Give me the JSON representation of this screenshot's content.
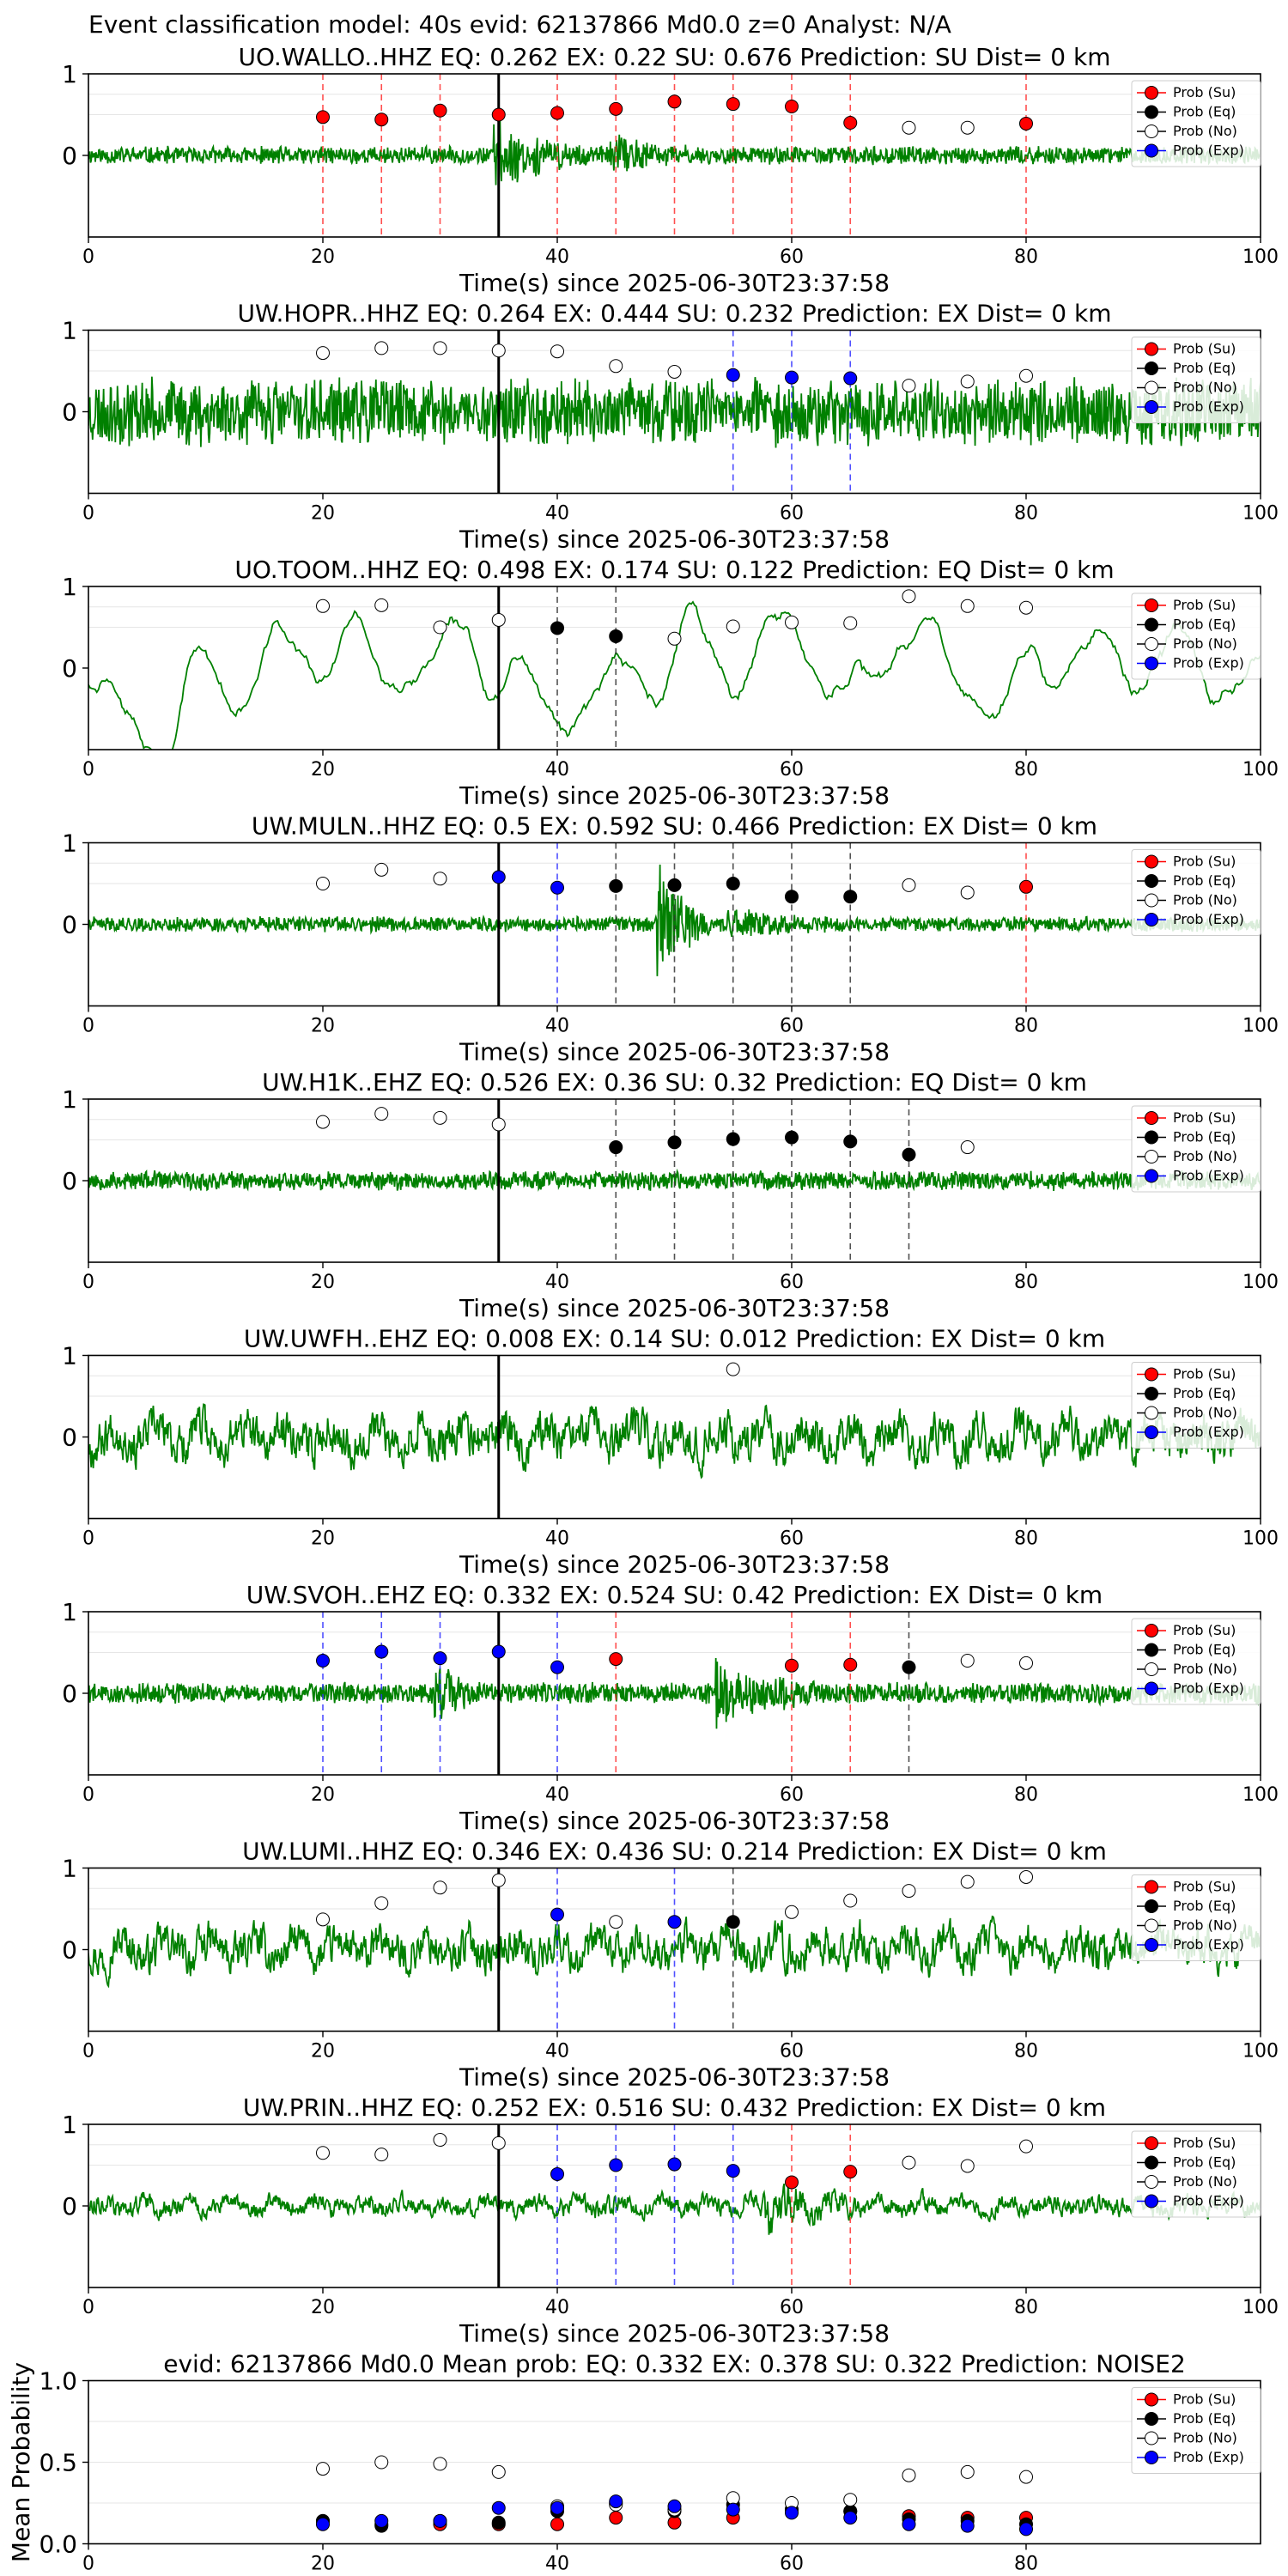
{
  "figure_title": "Event classification model: 40s evid: 62137866 Md0.0 z=0 Analyst: N/A",
  "xlabel": "Time(s) since 2025-06-30T23:37:58",
  "colors": {
    "waveform": "#008000",
    "su": "#ff0000",
    "eq": "#000000",
    "no": "#ffffff",
    "exp": "#0000ff",
    "pick_line": "#000000"
  },
  "legend_labels": [
    "Prob (Su)",
    "Prob (Eq)",
    "Prob (No)",
    "Prob (Exp)"
  ],
  "chart_data": [
    {
      "type": "line",
      "title": "UO.WALLO..HHZ   EQ: 0.262  EX: 0.22  SU: 0.676   Prediction: SU    Dist= 0 km",
      "xlim": [
        0,
        100
      ],
      "ylim": [
        -1,
        1
      ],
      "xticks": [
        0,
        20,
        40,
        60,
        80,
        100
      ],
      "yticks": [
        0,
        1
      ],
      "pick_time": 35,
      "noise_amp": 0.12,
      "seed": 11,
      "style": "noisy",
      "bursts": [
        [
          35,
          8,
          0.35
        ],
        [
          45,
          6,
          0.2
        ]
      ],
      "vlines": [
        {
          "x": 20,
          "c": "su"
        },
        {
          "x": 25,
          "c": "su"
        },
        {
          "x": 30,
          "c": "su"
        },
        {
          "x": 40,
          "c": "su"
        },
        {
          "x": 45,
          "c": "su"
        },
        {
          "x": 50,
          "c": "su"
        },
        {
          "x": 55,
          "c": "su"
        },
        {
          "x": 60,
          "c": "su"
        },
        {
          "x": 65,
          "c": "su"
        },
        {
          "x": 80,
          "c": "su"
        }
      ],
      "points": [
        {
          "x": 20,
          "y": 0.47,
          "c": "su"
        },
        {
          "x": 25,
          "y": 0.44,
          "c": "su"
        },
        {
          "x": 30,
          "y": 0.55,
          "c": "su"
        },
        {
          "x": 35,
          "y": 0.5,
          "c": "su"
        },
        {
          "x": 40,
          "y": 0.52,
          "c": "su"
        },
        {
          "x": 45,
          "y": 0.57,
          "c": "su"
        },
        {
          "x": 50,
          "y": 0.66,
          "c": "su"
        },
        {
          "x": 55,
          "y": 0.63,
          "c": "su"
        },
        {
          "x": 60,
          "y": 0.6,
          "c": "su"
        },
        {
          "x": 65,
          "y": 0.4,
          "c": "su"
        },
        {
          "x": 70,
          "y": 0.34,
          "c": "no"
        },
        {
          "x": 75,
          "y": 0.34,
          "c": "no"
        },
        {
          "x": 80,
          "y": 0.39,
          "c": "su"
        }
      ]
    },
    {
      "type": "line",
      "title": "UW.HOPR..HHZ   EQ: 0.264  EX: 0.444  SU: 0.232   Prediction: EX    Dist= 0 km",
      "xlim": [
        0,
        100
      ],
      "ylim": [
        -1,
        1
      ],
      "xticks": [
        0,
        20,
        40,
        60,
        80,
        100
      ],
      "yticks": [
        0,
        1
      ],
      "pick_time": 35,
      "noise_amp": 0.45,
      "seed": 23,
      "style": "noisy",
      "bursts": [],
      "vlines": [
        {
          "x": 55,
          "c": "exp"
        },
        {
          "x": 60,
          "c": "exp"
        },
        {
          "x": 65,
          "c": "exp"
        }
      ],
      "points": [
        {
          "x": 20,
          "y": 0.72,
          "c": "no"
        },
        {
          "x": 25,
          "y": 0.78,
          "c": "no"
        },
        {
          "x": 30,
          "y": 0.78,
          "c": "no"
        },
        {
          "x": 35,
          "y": 0.75,
          "c": "no"
        },
        {
          "x": 40,
          "y": 0.74,
          "c": "no"
        },
        {
          "x": 45,
          "y": 0.56,
          "c": "no"
        },
        {
          "x": 50,
          "y": 0.49,
          "c": "no"
        },
        {
          "x": 55,
          "y": 0.45,
          "c": "exp"
        },
        {
          "x": 60,
          "y": 0.42,
          "c": "exp"
        },
        {
          "x": 65,
          "y": 0.41,
          "c": "exp"
        },
        {
          "x": 70,
          "y": 0.32,
          "c": "no"
        },
        {
          "x": 75,
          "y": 0.37,
          "c": "no"
        },
        {
          "x": 80,
          "y": 0.44,
          "c": "no"
        }
      ]
    },
    {
      "type": "line",
      "title": "UO.TOOM..HHZ   EQ: 0.498  EX: 0.174  SU: 0.122   Prediction: EQ    Dist= 0 km",
      "xlim": [
        0,
        100
      ],
      "ylim": [
        -1,
        1
      ],
      "xticks": [
        0,
        20,
        40,
        60,
        80,
        100
      ],
      "yticks": [
        0,
        1
      ],
      "pick_time": 35,
      "noise_amp": 0.55,
      "seed": 37,
      "style": "smooth",
      "bursts": [],
      "vlines": [
        {
          "x": 40,
          "c": "eq"
        },
        {
          "x": 45,
          "c": "eq"
        }
      ],
      "points": [
        {
          "x": 20,
          "y": 0.76,
          "c": "no"
        },
        {
          "x": 25,
          "y": 0.77,
          "c": "no"
        },
        {
          "x": 30,
          "y": 0.5,
          "c": "no"
        },
        {
          "x": 35,
          "y": 0.59,
          "c": "no"
        },
        {
          "x": 40,
          "y": 0.49,
          "c": "eq"
        },
        {
          "x": 45,
          "y": 0.39,
          "c": "eq"
        },
        {
          "x": 50,
          "y": 0.36,
          "c": "no"
        },
        {
          "x": 55,
          "y": 0.51,
          "c": "no"
        },
        {
          "x": 60,
          "y": 0.56,
          "c": "no"
        },
        {
          "x": 65,
          "y": 0.55,
          "c": "no"
        },
        {
          "x": 70,
          "y": 0.88,
          "c": "no"
        },
        {
          "x": 75,
          "y": 0.76,
          "c": "no"
        },
        {
          "x": 80,
          "y": 0.74,
          "c": "no"
        }
      ]
    },
    {
      "type": "line",
      "title": "UW.MULN..HHZ   EQ: 0.5  EX: 0.592  SU: 0.466   Prediction: EX    Dist= 0 km",
      "xlim": [
        0,
        100
      ],
      "ylim": [
        -1,
        1
      ],
      "xticks": [
        0,
        20,
        40,
        60,
        80,
        100
      ],
      "yticks": [
        0,
        1
      ],
      "pick_time": 35,
      "noise_amp": 0.1,
      "seed": 41,
      "style": "noisy",
      "bursts": [
        [
          49,
          4,
          0.75
        ],
        [
          55,
          8,
          0.15
        ]
      ],
      "vlines": [
        {
          "x": 40,
          "c": "exp"
        },
        {
          "x": 45,
          "c": "eq"
        },
        {
          "x": 50,
          "c": "eq"
        },
        {
          "x": 55,
          "c": "eq"
        },
        {
          "x": 60,
          "c": "eq"
        },
        {
          "x": 65,
          "c": "eq"
        },
        {
          "x": 80,
          "c": "su"
        }
      ],
      "points": [
        {
          "x": 20,
          "y": 0.5,
          "c": "no"
        },
        {
          "x": 25,
          "y": 0.67,
          "c": "no"
        },
        {
          "x": 30,
          "y": 0.56,
          "c": "no"
        },
        {
          "x": 35,
          "y": 0.58,
          "c": "exp"
        },
        {
          "x": 40,
          "y": 0.45,
          "c": "exp"
        },
        {
          "x": 45,
          "y": 0.47,
          "c": "eq"
        },
        {
          "x": 50,
          "y": 0.48,
          "c": "eq"
        },
        {
          "x": 55,
          "y": 0.5,
          "c": "eq"
        },
        {
          "x": 60,
          "y": 0.34,
          "c": "eq"
        },
        {
          "x": 65,
          "y": 0.34,
          "c": "eq"
        },
        {
          "x": 70,
          "y": 0.48,
          "c": "no"
        },
        {
          "x": 75,
          "y": 0.39,
          "c": "no"
        },
        {
          "x": 80,
          "y": 0.46,
          "c": "su"
        }
      ]
    },
    {
      "type": "line",
      "title": "UW.H1K..EHZ   EQ: 0.526  EX: 0.36  SU: 0.32   Prediction: EQ    Dist= 0 km",
      "xlim": [
        0,
        100
      ],
      "ylim": [
        -1,
        1
      ],
      "xticks": [
        0,
        20,
        40,
        60,
        80,
        100
      ],
      "yticks": [
        0,
        1
      ],
      "pick_time": 35,
      "noise_amp": 0.13,
      "seed": 53,
      "style": "noisy",
      "bursts": [],
      "vlines": [
        {
          "x": 45,
          "c": "eq"
        },
        {
          "x": 50,
          "c": "eq"
        },
        {
          "x": 55,
          "c": "eq"
        },
        {
          "x": 60,
          "c": "eq"
        },
        {
          "x": 65,
          "c": "eq"
        },
        {
          "x": 70,
          "c": "eq"
        }
      ],
      "points": [
        {
          "x": 20,
          "y": 0.72,
          "c": "no"
        },
        {
          "x": 25,
          "y": 0.82,
          "c": "no"
        },
        {
          "x": 30,
          "y": 0.77,
          "c": "no"
        },
        {
          "x": 35,
          "y": 0.69,
          "c": "no"
        },
        {
          "x": 45,
          "y": 0.41,
          "c": "eq"
        },
        {
          "x": 50,
          "y": 0.47,
          "c": "eq"
        },
        {
          "x": 55,
          "y": 0.51,
          "c": "eq"
        },
        {
          "x": 60,
          "y": 0.53,
          "c": "eq"
        },
        {
          "x": 65,
          "y": 0.48,
          "c": "eq"
        },
        {
          "x": 70,
          "y": 0.32,
          "c": "eq"
        },
        {
          "x": 75,
          "y": 0.41,
          "c": "no"
        }
      ]
    },
    {
      "type": "line",
      "title": "UW.UWFH..EHZ   EQ: 0.008  EX: 0.14  SU: 0.012   Prediction: EX    Dist= 0 km",
      "xlim": [
        0,
        100
      ],
      "ylim": [
        -1,
        1
      ],
      "xticks": [
        0,
        20,
        40,
        60,
        80,
        100
      ],
      "yticks": [
        0,
        1
      ],
      "pick_time": 35,
      "noise_amp": 0.45,
      "seed": 67,
      "style": "medium",
      "bursts": [],
      "vlines": [],
      "points": [
        {
          "x": 55,
          "y": 0.83,
          "c": "no"
        }
      ]
    },
    {
      "type": "line",
      "title": "UW.SVOH..EHZ   EQ: 0.332  EX: 0.524  SU: 0.42   Prediction: EX    Dist= 0 km",
      "xlim": [
        0,
        100
      ],
      "ylim": [
        -1,
        1
      ],
      "xticks": [
        0,
        20,
        40,
        60,
        80,
        100
      ],
      "yticks": [
        0,
        1
      ],
      "pick_time": 35,
      "noise_amp": 0.14,
      "seed": 79,
      "style": "noisy",
      "bursts": [
        [
          30,
          3,
          0.3
        ],
        [
          54,
          8,
          0.35
        ]
      ],
      "vlines": [
        {
          "x": 20,
          "c": "exp"
        },
        {
          "x": 25,
          "c": "exp"
        },
        {
          "x": 30,
          "c": "exp"
        },
        {
          "x": 40,
          "c": "exp"
        },
        {
          "x": 45,
          "c": "su"
        },
        {
          "x": 60,
          "c": "su"
        },
        {
          "x": 65,
          "c": "su"
        },
        {
          "x": 70,
          "c": "eq"
        }
      ],
      "points": [
        {
          "x": 20,
          "y": 0.4,
          "c": "exp"
        },
        {
          "x": 25,
          "y": 0.51,
          "c": "exp"
        },
        {
          "x": 30,
          "y": 0.43,
          "c": "exp"
        },
        {
          "x": 35,
          "y": 0.51,
          "c": "exp"
        },
        {
          "x": 40,
          "y": 0.32,
          "c": "exp"
        },
        {
          "x": 45,
          "y": 0.42,
          "c": "su"
        },
        {
          "x": 60,
          "y": 0.34,
          "c": "su"
        },
        {
          "x": 65,
          "y": 0.35,
          "c": "su"
        },
        {
          "x": 70,
          "y": 0.32,
          "c": "eq"
        },
        {
          "x": 75,
          "y": 0.4,
          "c": "no"
        },
        {
          "x": 80,
          "y": 0.37,
          "c": "no"
        }
      ]
    },
    {
      "type": "line",
      "title": "UW.LUMI..HHZ   EQ: 0.346  EX: 0.436  SU: 0.214   Prediction: EX    Dist= 0 km",
      "xlim": [
        0,
        100
      ],
      "ylim": [
        -1,
        1
      ],
      "xticks": [
        0,
        20,
        40,
        60,
        80,
        100
      ],
      "yticks": [
        0,
        1
      ],
      "pick_time": 35,
      "noise_amp": 0.42,
      "seed": 97,
      "style": "medium",
      "bursts": [],
      "vlines": [
        {
          "x": 40,
          "c": "exp"
        },
        {
          "x": 50,
          "c": "exp"
        },
        {
          "x": 55,
          "c": "eq"
        }
      ],
      "points": [
        {
          "x": 20,
          "y": 0.37,
          "c": "no"
        },
        {
          "x": 25,
          "y": 0.57,
          "c": "no"
        },
        {
          "x": 30,
          "y": 0.76,
          "c": "no"
        },
        {
          "x": 35,
          "y": 0.85,
          "c": "no"
        },
        {
          "x": 40,
          "y": 0.43,
          "c": "exp"
        },
        {
          "x": 45,
          "y": 0.34,
          "c": "no"
        },
        {
          "x": 50,
          "y": 0.34,
          "c": "exp"
        },
        {
          "x": 55,
          "y": 0.34,
          "c": "eq"
        },
        {
          "x": 60,
          "y": 0.46,
          "c": "no"
        },
        {
          "x": 65,
          "y": 0.6,
          "c": "no"
        },
        {
          "x": 70,
          "y": 0.72,
          "c": "no"
        },
        {
          "x": 75,
          "y": 0.83,
          "c": "no"
        },
        {
          "x": 80,
          "y": 0.89,
          "c": "no"
        }
      ]
    },
    {
      "type": "line",
      "title": "UW.PRIN..HHZ   EQ: 0.252  EX: 0.516  SU: 0.432   Prediction: EX    Dist= 0 km",
      "xlim": [
        0,
        100
      ],
      "ylim": [
        -1,
        1
      ],
      "xticks": [
        0,
        20,
        40,
        60,
        80,
        100
      ],
      "yticks": [
        0,
        1
      ],
      "pick_time": 35,
      "noise_amp": 0.2,
      "seed": 113,
      "style": "medium",
      "bursts": [
        [
          58,
          8,
          0.4
        ]
      ],
      "vlines": [
        {
          "x": 40,
          "c": "exp"
        },
        {
          "x": 45,
          "c": "exp"
        },
        {
          "x": 50,
          "c": "exp"
        },
        {
          "x": 55,
          "c": "exp"
        },
        {
          "x": 60,
          "c": "su"
        },
        {
          "x": 65,
          "c": "su"
        }
      ],
      "points": [
        {
          "x": 20,
          "y": 0.65,
          "c": "no"
        },
        {
          "x": 25,
          "y": 0.63,
          "c": "no"
        },
        {
          "x": 30,
          "y": 0.81,
          "c": "no"
        },
        {
          "x": 35,
          "y": 0.77,
          "c": "no"
        },
        {
          "x": 40,
          "y": 0.39,
          "c": "exp"
        },
        {
          "x": 45,
          "y": 0.5,
          "c": "exp"
        },
        {
          "x": 50,
          "y": 0.51,
          "c": "exp"
        },
        {
          "x": 55,
          "y": 0.43,
          "c": "exp"
        },
        {
          "x": 60,
          "y": 0.29,
          "c": "su"
        },
        {
          "x": 65,
          "y": 0.42,
          "c": "su"
        },
        {
          "x": 70,
          "y": 0.53,
          "c": "no"
        },
        {
          "x": 75,
          "y": 0.49,
          "c": "no"
        },
        {
          "x": 80,
          "y": 0.73,
          "c": "no"
        }
      ]
    },
    {
      "type": "scatter",
      "title": "evid: 62137866  Md0.0   Mean prob:    EQ: 0.332  EX: 0.378  SU: 0.322   Prediction: NOISE2",
      "ylabel": "Mean Probability",
      "xlim": [
        0,
        100
      ],
      "ylim": [
        0,
        1
      ],
      "xticks": [
        0,
        20,
        40,
        60,
        80
      ],
      "yticks": [
        0.0,
        0.5,
        1.0
      ],
      "series": [
        {
          "name": "Prob (Su)",
          "c": "su",
          "x": [
            20,
            25,
            30,
            35,
            40,
            45,
            50,
            55,
            60,
            65,
            70,
            75,
            80
          ],
          "y": [
            0.14,
            0.12,
            0.12,
            0.12,
            0.12,
            0.16,
            0.13,
            0.16,
            0.21,
            0.2,
            0.17,
            0.16,
            0.16
          ]
        },
        {
          "name": "Prob (Eq)",
          "c": "eq",
          "x": [
            20,
            25,
            30,
            35,
            40,
            45,
            50,
            55,
            60,
            65,
            70,
            75,
            80
          ],
          "y": [
            0.14,
            0.11,
            0.14,
            0.13,
            0.2,
            0.25,
            0.2,
            0.24,
            0.21,
            0.2,
            0.15,
            0.14,
            0.12
          ]
        },
        {
          "name": "Prob (No)",
          "c": "no",
          "x": [
            20,
            25,
            30,
            35,
            40,
            45,
            50,
            55,
            60,
            65,
            70,
            75,
            80
          ],
          "y": [
            0.46,
            0.5,
            0.49,
            0.44,
            0.23,
            0.24,
            0.21,
            0.28,
            0.25,
            0.27,
            0.42,
            0.44,
            0.41
          ]
        },
        {
          "name": "Prob (Exp)",
          "c": "exp",
          "x": [
            20,
            25,
            30,
            35,
            40,
            45,
            50,
            55,
            60,
            65,
            70,
            75,
            80
          ],
          "y": [
            0.12,
            0.14,
            0.14,
            0.22,
            0.22,
            0.26,
            0.23,
            0.21,
            0.19,
            0.16,
            0.12,
            0.11,
            0.09
          ]
        }
      ]
    }
  ]
}
